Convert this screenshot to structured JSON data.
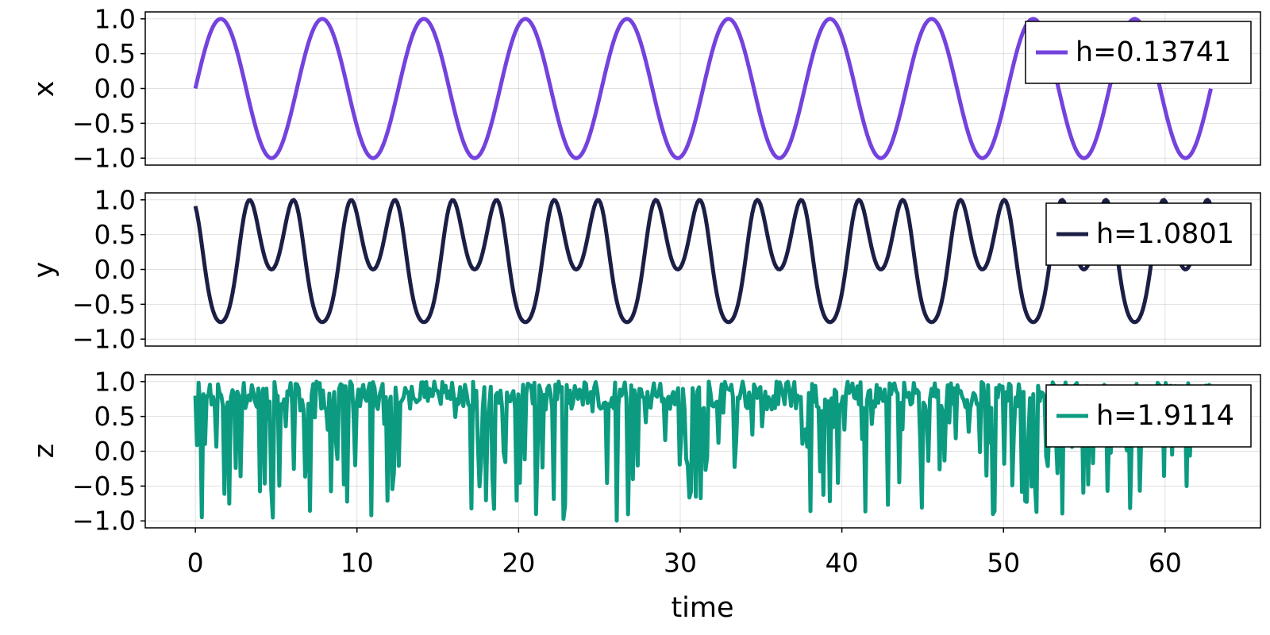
{
  "chart_data": {
    "type": "line",
    "xlabel": "time",
    "x_range": [
      0,
      62.83
    ],
    "xlim": [
      -3.1,
      65.9
    ],
    "x_ticks": [
      "0",
      "10",
      "20",
      "30",
      "40",
      "50",
      "60"
    ],
    "x_tick_values": [
      0,
      10,
      20,
      30,
      40,
      50,
      60
    ],
    "y_ticks": [
      "1.0",
      "0.5",
      "0.0",
      "−0.5",
      "−1.0"
    ],
    "y_tick_values": [
      1.0,
      0.5,
      0.0,
      -0.5,
      -1.0
    ],
    "grid": true,
    "legend_position": "top-right",
    "panels": [
      {
        "ylabel": "x",
        "ylim": [
          -1.1,
          1.1
        ],
        "series": [
          {
            "name": "h=0.13741",
            "color": "#7442dd",
            "form": "sin(t)",
            "samples": 630
          }
        ]
      },
      {
        "ylabel": "y",
        "ylim": [
          -1.1,
          1.1
        ],
        "series": [
          {
            "name": "h=1.0801",
            "color": "#1c1f45",
            "form": "sin(sin(t)*2 + 2)",
            "samples": 630
          }
        ]
      },
      {
        "ylabel": "z",
        "ylim": [
          -1.1,
          1.1
        ],
        "series": [
          {
            "name": "h=1.9114",
            "color": "#0c9b80",
            "form": "pseudo-random values in [-1, 1]",
            "samples": 630,
            "seed": 7
          }
        ]
      }
    ]
  }
}
